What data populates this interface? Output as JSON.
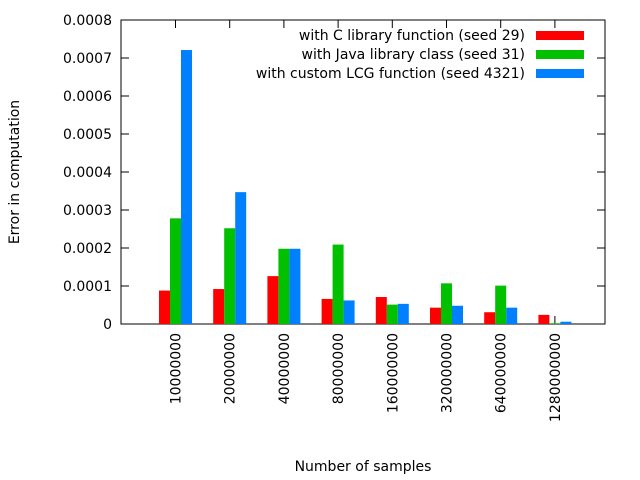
{
  "chart_data": {
    "type": "bar",
    "xlabel": "Number of samples",
    "ylabel": "Error in computation",
    "ylim": [
      0,
      0.0008
    ],
    "yticks": [
      "0",
      "0.0001",
      "0.0002",
      "0.0003",
      "0.0004",
      "0.0005",
      "0.0006",
      "0.0007",
      "0.0008"
    ],
    "categories": [
      "10000000",
      "20000000",
      "40000000",
      "80000000",
      "160000000",
      "320000000",
      "640000000",
      "1280000000"
    ],
    "legend_position": "top-right",
    "grid": false,
    "series": [
      {
        "name": "with C library function (seed 29)",
        "color": "#ff0000",
        "values": [
          8.8e-05,
          9.2e-05,
          0.000126,
          6.6e-05,
          7.1e-05,
          4.3e-05,
          3.1e-05,
          2.4e-05
        ]
      },
      {
        "name": "with Java library class (seed 31)",
        "color": "#00c000",
        "values": [
          0.000278,
          0.000252,
          0.000198,
          0.000209,
          5.1e-05,
          0.000107,
          0.000101,
          2e-06
        ]
      },
      {
        "name": "with custom LCG function (seed 4321)",
        "color": "#0080ff",
        "values": [
          0.000721,
          0.000347,
          0.000198,
          6.2e-05,
          5.3e-05,
          4.8e-05,
          4.3e-05,
          6e-06
        ]
      }
    ]
  }
}
